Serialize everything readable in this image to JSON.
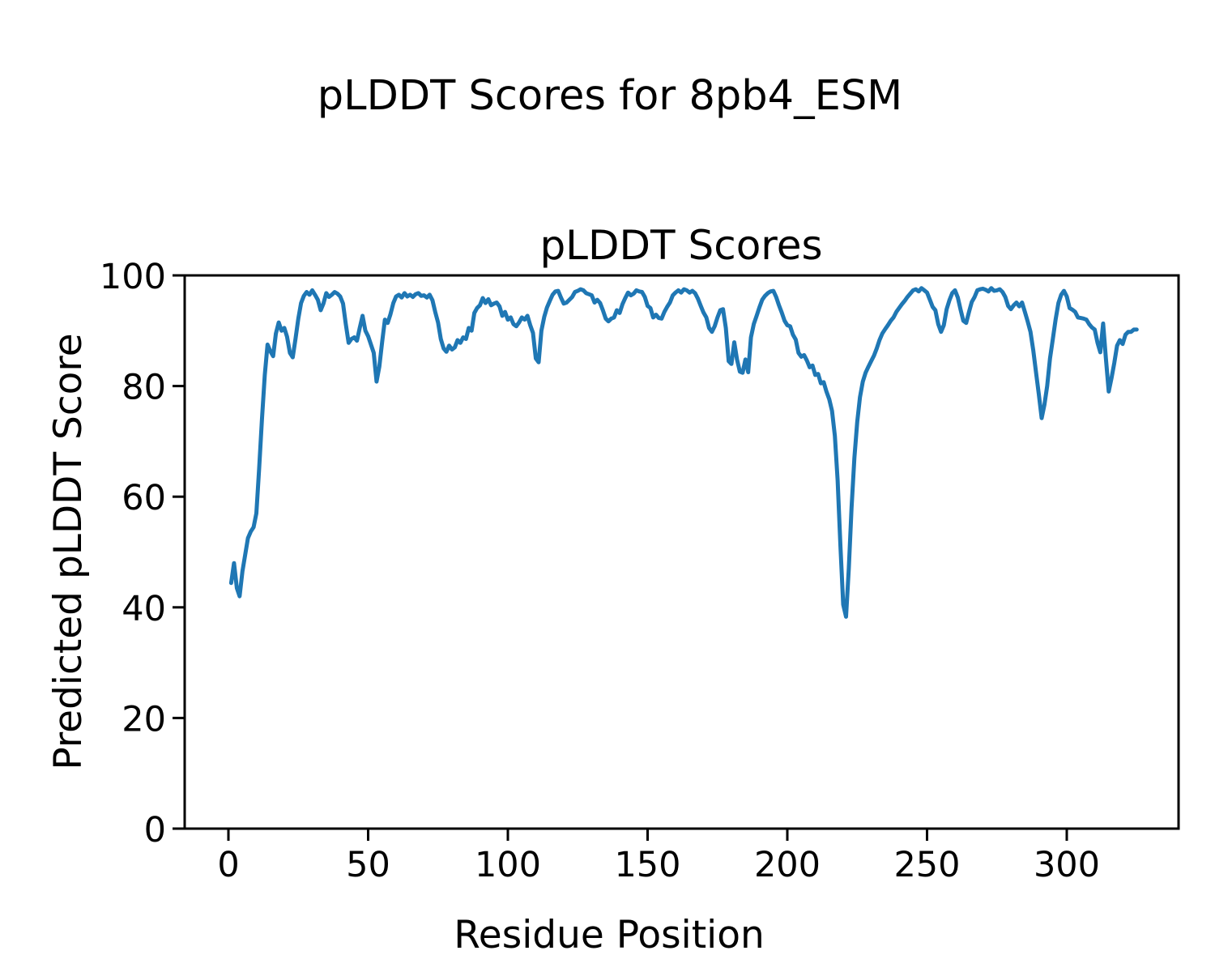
{
  "figure": {
    "suptitle": "pLDDT Scores for 8pb4_ESM",
    "background_color": "#ffffff",
    "text_color": "#000000"
  },
  "chart_data": {
    "type": "line",
    "title": "pLDDT Scores",
    "xlabel": "Residue Position",
    "ylabel": "Predicted pLDDT Score",
    "xticks": [
      0,
      50,
      100,
      150,
      200,
      250,
      300
    ],
    "yticks": [
      0,
      20,
      40,
      60,
      80,
      100
    ],
    "xlim": [
      -15.7,
      340
    ],
    "ylim": [
      0,
      100
    ],
    "grid": false,
    "legend_position": "none",
    "line_color": "#1f77b4",
    "spine_color": "#000000",
    "line_width": 5,
    "x_start": 1,
    "x_step": 1,
    "n_points": 325,
    "series": [
      {
        "name": "pLDDT",
        "values": [
          44.4,
          48.0,
          43.5,
          42.0,
          46.5,
          49.5,
          52.5,
          53.7,
          54.5,
          57.0,
          65.0,
          74.0,
          82.0,
          87.5,
          86.3,
          85.4,
          89.5,
          91.5,
          90.0,
          90.5,
          88.9,
          86.0,
          85.2,
          88.5,
          92.2,
          95.0,
          96.3,
          97.0,
          96.5,
          97.3,
          96.5,
          95.6,
          93.7,
          94.9,
          96.8,
          96.1,
          96.5,
          97.0,
          96.7,
          96.2,
          94.9,
          91.2,
          87.8,
          88.5,
          88.8,
          88.2,
          90.5,
          92.7,
          90.0,
          89.0,
          87.5,
          86.0,
          80.8,
          83.5,
          88.0,
          92.0,
          91.4,
          93.0,
          95.0,
          96.2,
          96.5,
          96.0,
          96.8,
          96.2,
          96.5,
          96.1,
          96.6,
          96.8,
          96.3,
          96.4,
          96.0,
          96.5,
          95.5,
          93.4,
          91.5,
          88.5,
          86.8,
          86.2,
          87.3,
          86.6,
          87.0,
          88.3,
          87.8,
          88.8,
          88.5,
          90.5,
          90.0,
          93.2,
          94.1,
          94.6,
          95.9,
          95.0,
          95.7,
          94.6,
          94.9,
          95.1,
          94.4,
          92.7,
          93.4,
          92.0,
          92.4,
          91.2,
          90.8,
          91.5,
          92.4,
          92.0,
          92.7,
          91.0,
          89.6,
          85.0,
          84.3,
          90.0,
          92.5,
          94.2,
          95.4,
          96.5,
          97.1,
          97.2,
          96.0,
          94.9,
          95.1,
          95.6,
          96.1,
          97.0,
          97.2,
          97.5,
          97.3,
          96.8,
          96.6,
          96.4,
          95.1,
          95.6,
          95.0,
          93.7,
          92.2,
          91.7,
          92.2,
          92.4,
          93.7,
          93.2,
          94.8,
          95.9,
          96.9,
          96.4,
          96.7,
          97.3,
          97.1,
          97.0,
          96.1,
          94.5,
          94.1,
          92.4,
          92.9,
          92.3,
          92.2,
          93.4,
          94.3,
          95.1,
          96.4,
          96.9,
          97.3,
          96.9,
          97.5,
          97.3,
          96.9,
          97.2,
          96.8,
          95.8,
          94.5,
          93.3,
          92.4,
          90.5,
          89.8,
          90.8,
          92.4,
          93.7,
          93.9,
          90.5,
          84.5,
          84.0,
          87.9,
          84.8,
          82.6,
          82.4,
          84.8,
          82.5,
          88.8,
          91.2,
          92.7,
          94.2,
          95.6,
          96.3,
          96.8,
          97.1,
          97.2,
          96.1,
          94.6,
          93.3,
          91.8,
          91.0,
          90.8,
          89.3,
          88.4,
          86.0,
          85.3,
          85.6,
          84.6,
          83.4,
          83.7,
          82.0,
          82.2,
          80.5,
          80.7,
          79.0,
          77.6,
          75.5,
          71.0,
          63.0,
          51.0,
          40.5,
          38.3,
          47.0,
          58.0,
          67.0,
          73.5,
          78.0,
          80.8,
          82.4,
          83.5,
          84.5,
          85.5,
          86.8,
          88.3,
          89.5,
          90.3,
          91.0,
          91.8,
          92.4,
          93.4,
          94.1,
          94.8,
          95.4,
          96.1,
          96.7,
          97.3,
          97.5,
          97.1,
          97.7,
          97.3,
          96.9,
          95.6,
          94.3,
          93.7,
          91.2,
          89.8,
          91.0,
          93.9,
          95.5,
          96.8,
          97.3,
          96.0,
          93.8,
          91.8,
          91.4,
          93.4,
          95.2,
          96.1,
          97.3,
          97.5,
          97.6,
          97.4,
          97.1,
          97.7,
          97.2,
          97.3,
          97.5,
          97.0,
          96.1,
          94.5,
          93.9,
          94.6,
          95.1,
          94.4,
          95.1,
          93.4,
          91.7,
          89.8,
          86.5,
          82.4,
          78.5,
          74.2,
          76.6,
          80.0,
          85.0,
          88.5,
          92.0,
          95.0,
          96.5,
          97.2,
          96.2,
          94.1,
          93.8,
          93.4,
          92.4,
          92.3,
          92.2,
          92.0,
          91.2,
          90.6,
          90.2,
          87.8,
          86.1,
          91.3,
          85.0,
          79.0,
          81.4,
          84.2,
          87.3,
          88.3,
          87.6,
          89.3,
          89.8,
          89.8,
          90.2,
          90.2
        ]
      }
    ]
  }
}
